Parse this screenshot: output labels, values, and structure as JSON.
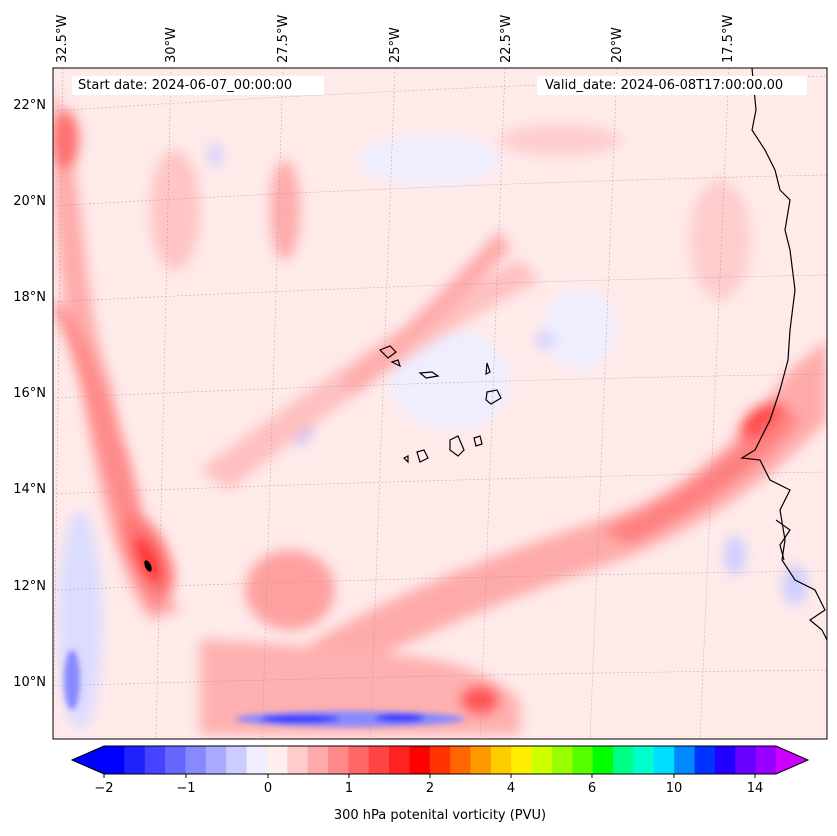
{
  "map": {
    "start_date": "Start date: 2024-06-07_00:00:00",
    "valid_date": "Valid_date: 2024-06-08T17:00:00.00",
    "lon_labels": [
      "32.5°W",
      "30°W",
      "27.5°W",
      "25°W",
      "22.5°W",
      "20°W",
      "17.5°W"
    ],
    "lat_labels": [
      "22°N",
      "20°N",
      "18°N",
      "16°N",
      "14°N",
      "12°N",
      "10°N"
    ],
    "lon_range": [
      -33,
      -15.5
    ],
    "lat_range": [
      9,
      22.8
    ],
    "projection": "conic-like, curved graticule",
    "field": "300 hPa potential vorticity",
    "features": {
      "coastline": "West Africa",
      "islands": "Cape Verde",
      "high_pv_bands": [
        "western N-S band near 32.5°W–30°W",
        "SW–NE band ending near coast at 15.5°N",
        "southern band near 10°N"
      ],
      "max_center": "near 31°W, 12.5°N",
      "negative_pv": [
        "near 26°W–24°W at 9.3°N",
        "west edge near 32.5°W 10°N"
      ]
    }
  },
  "colorbar": {
    "label": "300 hPa potenital vorticity (PVU)",
    "ticks": [
      "−2",
      "−1",
      "0",
      "1",
      "2",
      "4",
      "6",
      "10",
      "14"
    ],
    "colors": [
      "#0000ff",
      "#2222ff",
      "#4444ff",
      "#6666ff",
      "#8888ff",
      "#aaaaff",
      "#ccccff",
      "#eeeeff",
      "#ffeeee",
      "#ffcccc",
      "#ffaaaa",
      "#ff8888",
      "#ff6666",
      "#ff4444",
      "#ff2222",
      "#ff0000",
      "#ff3300",
      "#ff6600",
      "#ff9900",
      "#ffcc00",
      "#ffee00",
      "#ccff00",
      "#99ff00",
      "#55ff00",
      "#00ff00",
      "#00ff88",
      "#00ffcc",
      "#00ddff",
      "#0088ff",
      "#0033ff",
      "#2200ff",
      "#6600ff",
      "#9900ff"
    ],
    "extend_low": "#0000ff",
    "extend_high": "#cc00ff"
  }
}
